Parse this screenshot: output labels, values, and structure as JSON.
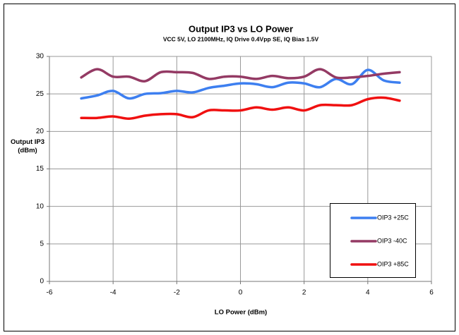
{
  "chart_data": {
    "type": "line",
    "title": "Output IP3 vs LO Power",
    "subtitle": "VCC 5V, LO 2100MHz, IQ Drive 0.4Vpp SE, IQ Bias 1.5V",
    "xlabel": "LO Power (dBm)",
    "ylabel": "Output IP3 (dBm)",
    "x": [
      -5,
      -4.5,
      -4,
      -3.5,
      -3,
      -2.5,
      -2,
      -1.5,
      -1,
      -0.5,
      0,
      0.5,
      1,
      1.5,
      2,
      2.5,
      3,
      3.5,
      4,
      4.5,
      5
    ],
    "series": [
      {
        "name": "OIP3 +25C",
        "color": "#3d7ff0",
        "values": [
          24.4,
          24.8,
          25.4,
          24.4,
          25.0,
          25.1,
          25.4,
          25.2,
          25.8,
          26.1,
          26.4,
          26.3,
          25.9,
          26.5,
          26.4,
          25.9,
          27.0,
          26.3,
          28.2,
          26.8,
          26.5
        ]
      },
      {
        "name": "OIP3 -40C",
        "color": "#943a64",
        "values": [
          27.2,
          28.3,
          27.3,
          27.3,
          26.7,
          27.9,
          27.9,
          27.8,
          27.0,
          27.3,
          27.3,
          27.0,
          27.4,
          27.1,
          27.3,
          28.3,
          27.2,
          27.2,
          27.4,
          27.7,
          27.9
        ]
      },
      {
        "name": "OIP3 +85C",
        "color": "#f01010",
        "values": [
          21.8,
          21.8,
          22.0,
          21.7,
          22.1,
          22.3,
          22.3,
          21.9,
          22.8,
          22.8,
          22.8,
          23.2,
          22.9,
          23.2,
          22.8,
          23.5,
          23.5,
          23.5,
          24.3,
          24.5,
          24.1
        ]
      }
    ],
    "xlim": [
      -6,
      6
    ],
    "xticks": [
      -6,
      -4,
      -2,
      0,
      2,
      4,
      6
    ],
    "ylim": [
      0,
      30
    ],
    "yticks": [
      0,
      5,
      10,
      15,
      20,
      25,
      30
    ],
    "grid": true,
    "legend": "lower right"
  }
}
